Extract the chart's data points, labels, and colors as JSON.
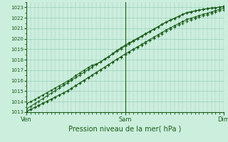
{
  "title": "",
  "xlabel": "Pression niveau de la mer( hPa )",
  "background_color": "#cceedd",
  "grid_color": "#99ccbb",
  "line_color": "#1a5c1a",
  "ylim": [
    1013,
    1023.5
  ],
  "xlim": [
    0,
    48
  ],
  "yticks": [
    1013,
    1014,
    1015,
    1016,
    1017,
    1018,
    1019,
    1020,
    1021,
    1022,
    1023
  ],
  "xtick_positions": [
    0,
    24,
    48
  ],
  "xtick_labels": [
    "Ven",
    "Sam",
    "Dim"
  ],
  "x_hours": [
    0,
    1,
    2,
    3,
    4,
    5,
    6,
    7,
    8,
    9,
    10,
    11,
    12,
    13,
    14,
    15,
    16,
    17,
    18,
    19,
    20,
    21,
    22,
    23,
    24,
    25,
    26,
    27,
    28,
    29,
    30,
    31,
    32,
    33,
    34,
    35,
    36,
    37,
    38,
    39,
    40,
    41,
    42,
    43,
    44,
    45,
    46,
    47,
    48
  ],
  "line_main": [
    1013.3,
    1013.55,
    1013.8,
    1014.05,
    1014.3,
    1014.55,
    1014.8,
    1015.05,
    1015.3,
    1015.55,
    1015.8,
    1016.05,
    1016.3,
    1016.55,
    1016.8,
    1017.05,
    1017.3,
    1017.55,
    1017.8,
    1018.05,
    1018.3,
    1018.55,
    1018.8,
    1019.05,
    1019.3,
    1019.53,
    1019.76,
    1019.99,
    1020.22,
    1020.45,
    1020.68,
    1020.91,
    1021.14,
    1021.37,
    1021.6,
    1021.78,
    1021.96,
    1022.14,
    1022.32,
    1022.5,
    1022.58,
    1022.66,
    1022.74,
    1022.82,
    1022.88,
    1022.93,
    1022.97,
    1023.02,
    1023.1
  ],
  "line_upper": [
    1013.8,
    1014.0,
    1014.2,
    1014.42,
    1014.64,
    1014.86,
    1015.08,
    1015.3,
    1015.52,
    1015.74,
    1015.96,
    1016.18,
    1016.5,
    1016.75,
    1017.0,
    1017.25,
    1017.5,
    1017.6,
    1017.8,
    1018.05,
    1018.3,
    1018.6,
    1018.9,
    1019.15,
    1019.4,
    1019.62,
    1019.84,
    1020.06,
    1020.28,
    1020.5,
    1020.72,
    1020.94,
    1021.16,
    1021.38,
    1021.6,
    1021.78,
    1021.96,
    1022.14,
    1022.32,
    1022.5,
    1022.58,
    1022.66,
    1022.74,
    1022.82,
    1022.88,
    1022.93,
    1022.97,
    1023.02,
    1023.1
  ],
  "line_lower": [
    1013.05,
    1013.25,
    1013.45,
    1013.65,
    1013.85,
    1014.05,
    1014.25,
    1014.45,
    1014.65,
    1014.85,
    1015.05,
    1015.3,
    1015.55,
    1015.8,
    1016.05,
    1016.3,
    1016.55,
    1016.8,
    1017.05,
    1017.3,
    1017.55,
    1017.8,
    1018.05,
    1018.3,
    1018.55,
    1018.78,
    1019.01,
    1019.24,
    1019.47,
    1019.7,
    1019.93,
    1020.16,
    1020.39,
    1020.62,
    1020.85,
    1021.05,
    1021.25,
    1021.45,
    1021.65,
    1021.85,
    1021.97,
    1022.09,
    1022.21,
    1022.33,
    1022.45,
    1022.57,
    1022.69,
    1022.81,
    1022.93
  ],
  "line_dotted": [
    1013.1,
    1013.28,
    1013.46,
    1013.64,
    1013.82,
    1014.0,
    1014.2,
    1014.4,
    1014.6,
    1014.8,
    1015.0,
    1015.25,
    1015.5,
    1015.75,
    1016.0,
    1016.25,
    1016.5,
    1016.75,
    1017.0,
    1017.25,
    1017.5,
    1017.75,
    1018.0,
    1018.25,
    1018.5,
    1018.72,
    1018.94,
    1019.16,
    1019.38,
    1019.6,
    1019.82,
    1020.04,
    1020.26,
    1020.48,
    1020.7,
    1020.9,
    1021.1,
    1021.3,
    1021.5,
    1021.7,
    1021.82,
    1021.94,
    1022.06,
    1022.18,
    1022.3,
    1022.42,
    1022.54,
    1022.66,
    1022.78
  ]
}
